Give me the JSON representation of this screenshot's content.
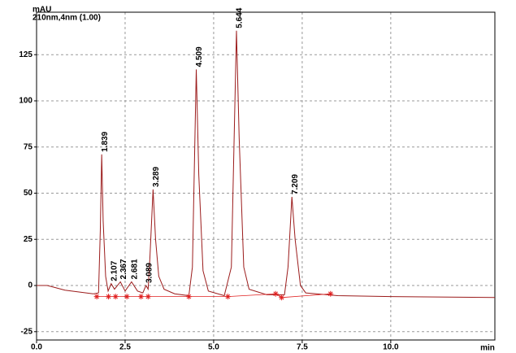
{
  "chart_data": {
    "type": "line",
    "title": "210nm,4nm (1.00)",
    "y_label": "mAU",
    "x_label": "min",
    "color": "#9b1b1b",
    "x": [
      0,
      0.3,
      0.5,
      0.8,
      1.2,
      1.6,
      1.75,
      1.8,
      1.839,
      1.88,
      1.95,
      2.02,
      2.107,
      2.2,
      2.367,
      2.5,
      2.681,
      2.85,
      3.0,
      3.089,
      3.15,
      3.2,
      3.289,
      3.36,
      3.45,
      3.6,
      3.9,
      4.3,
      4.4,
      4.509,
      4.58,
      4.7,
      4.85,
      5.3,
      5.5,
      5.644,
      5.72,
      5.85,
      6.0,
      6.5,
      7.0,
      7.1,
      7.209,
      7.3,
      7.45,
      7.6,
      8.5,
      10,
      12.94
    ],
    "values": [
      0,
      0,
      -1,
      -2.5,
      -3.5,
      -4.5,
      -4,
      30,
      71,
      35,
      5,
      -3,
      1,
      -2,
      2,
      -3,
      2,
      -3,
      -4,
      0,
      -2,
      15,
      52,
      25,
      5,
      -2,
      -4.5,
      -5.5,
      10,
      117,
      60,
      8,
      -3,
      -5.5,
      10,
      138,
      80,
      10,
      -2,
      -5,
      -5,
      10,
      48,
      25,
      0,
      -4,
      -5.5,
      -6,
      -6.5
    ],
    "peak_labels": [
      1.839,
      2.107,
      2.367,
      2.681,
      3.089,
      3.289,
      4.509,
      5.644,
      7.209
    ],
    "integration_marks": {
      "color": "#e02020",
      "x": [
        1.7,
        2.03,
        2.23,
        2.55,
        2.95,
        3.15,
        4.3,
        5.4,
        6.75,
        6.92,
        8.3
      ],
      "y": [
        -6,
        -6,
        -6,
        -6,
        -6,
        -6,
        -6,
        -6,
        -4.5,
        -6.5,
        -4.5
      ]
    },
    "xlim": [
      0,
      12.94
    ],
    "ylim": [
      -29.5,
      148
    ],
    "xticks": [
      {
        "value": 0,
        "label": "0.0"
      },
      {
        "value": 2.5,
        "label": "2.5"
      },
      {
        "value": 5,
        "label": "5.0"
      },
      {
        "value": 7.5,
        "label": "7.5"
      },
      {
        "value": 10,
        "label": "10.0"
      }
    ],
    "yticks": [
      -25,
      0,
      25,
      50,
      75,
      100,
      125
    ],
    "grid": true
  }
}
